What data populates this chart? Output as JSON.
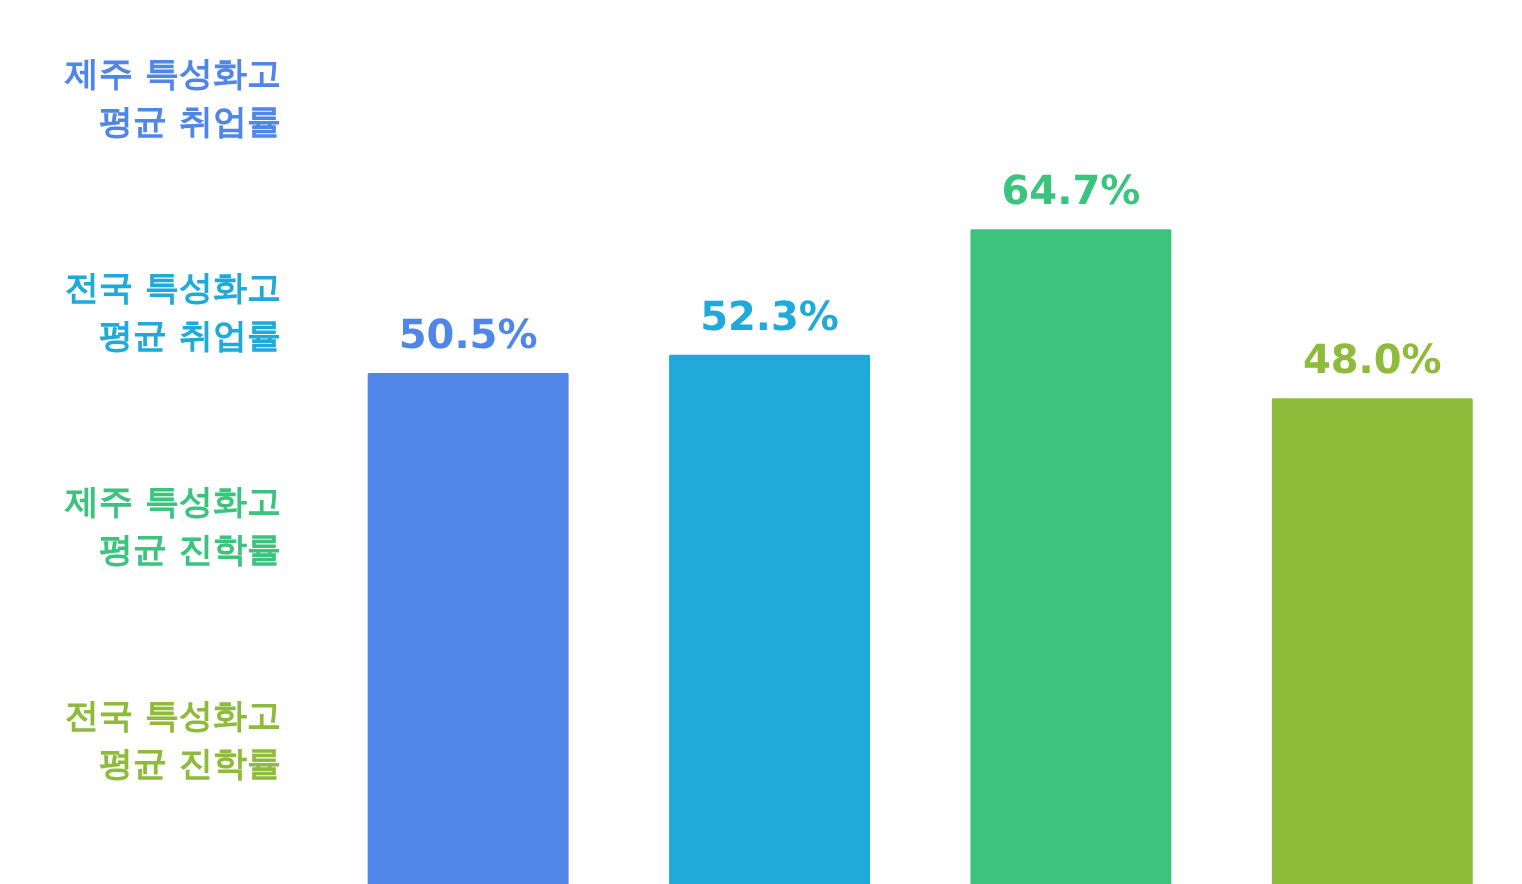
{
  "chart_data": {
    "type": "bar",
    "categories": [
      null,
      null,
      null,
      null
    ],
    "values": [
      50.5,
      52.3,
      64.7,
      48.0
    ],
    "colors": [
      "#4f86e8",
      "#1faad9",
      "#3cc47f",
      "#8fbb3a"
    ],
    "value_labels": [
      "50.5%",
      "52.3%",
      "64.7%",
      "48.0%"
    ],
    "annotations": [
      "제주 특성화고\n평균 취업률",
      "전국 특성화고\n평균 취업률",
      "제주 특성화고\n평균 진학률",
      "전국 특성화고\n평균 진학률"
    ],
    "tick_labels": false,
    "grid": false
  }
}
